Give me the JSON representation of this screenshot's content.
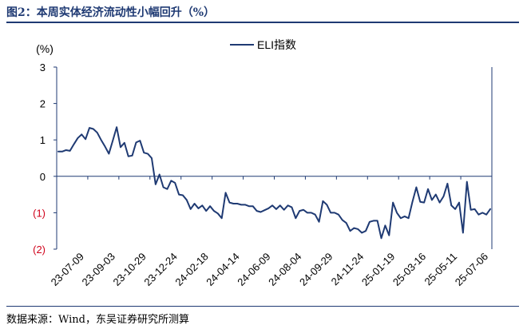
{
  "header": {
    "title": "图2：本周实体经济流动性小幅回升（%）"
  },
  "footer": {
    "source": "数据来源：Wind，东吴证券研究所测算"
  },
  "colors": {
    "line": "#1f3a73",
    "negative_label": "#d0021b",
    "frame": "#1f3a73",
    "axis_text": "#000000"
  },
  "chart_data": {
    "type": "line",
    "title": "",
    "ylabel": "(%)",
    "xlabel": "",
    "ylim": [
      -2,
      3
    ],
    "y_ticks": [
      3,
      2,
      1,
      0,
      -1,
      -2
    ],
    "y_tick_labels": [
      "3",
      "2",
      "1",
      "0",
      "(1)",
      "(2)"
    ],
    "x_tick_labels": [
      "23-07-09",
      "23-09-03",
      "23-10-29",
      "23-12-24",
      "24-02-18",
      "24-04-14",
      "24-06-09",
      "24-08-04",
      "24-09-29",
      "24-11-24",
      "25-01-19",
      "25-03-16",
      "25-05-11",
      "25-07-06"
    ],
    "legend": {
      "position": "top-center",
      "entries": [
        "ELI指数"
      ]
    },
    "series": [
      {
        "name": "ELI指数",
        "values": [
          0.68,
          0.68,
          0.72,
          0.7,
          0.88,
          1.05,
          1.15,
          1.02,
          1.33,
          1.3,
          1.2,
          1.0,
          0.82,
          0.62,
          0.98,
          1.35,
          0.8,
          0.92,
          0.55,
          0.57,
          0.93,
          0.98,
          0.65,
          0.62,
          0.5,
          -0.22,
          0.05,
          -0.3,
          -0.35,
          -0.12,
          -0.18,
          -0.5,
          -0.52,
          -0.65,
          -0.9,
          -0.75,
          -0.88,
          -0.8,
          -0.95,
          -0.82,
          -0.95,
          -1.02,
          -1.15,
          -0.45,
          -0.72,
          -0.75,
          -0.75,
          -0.78,
          -0.78,
          -0.82,
          -0.82,
          -0.95,
          -0.98,
          -0.93,
          -0.88,
          -0.8,
          -0.9,
          -0.8,
          -0.92,
          -0.8,
          -0.85,
          -1.15,
          -0.95,
          -0.92,
          -1.0,
          -1.0,
          -1.05,
          -1.25,
          -0.68,
          -0.78,
          -1.0,
          -1.0,
          -1.05,
          -1.2,
          -1.28,
          -1.5,
          -1.42,
          -1.45,
          -1.55,
          -1.5,
          -1.25,
          -1.22,
          -1.22,
          -1.7,
          -1.35,
          -1.62,
          -0.72,
          -1.0,
          -1.15,
          -1.1,
          -1.15,
          -0.7,
          -0.3,
          -0.7,
          -0.72,
          -0.35,
          -0.65,
          -0.5,
          -0.72,
          -0.55,
          -0.2,
          -0.8,
          -0.9,
          -0.72,
          -1.55,
          -0.15,
          -0.92,
          -0.9,
          -1.05,
          -1.0,
          -1.05,
          -0.9
        ]
      }
    ]
  }
}
